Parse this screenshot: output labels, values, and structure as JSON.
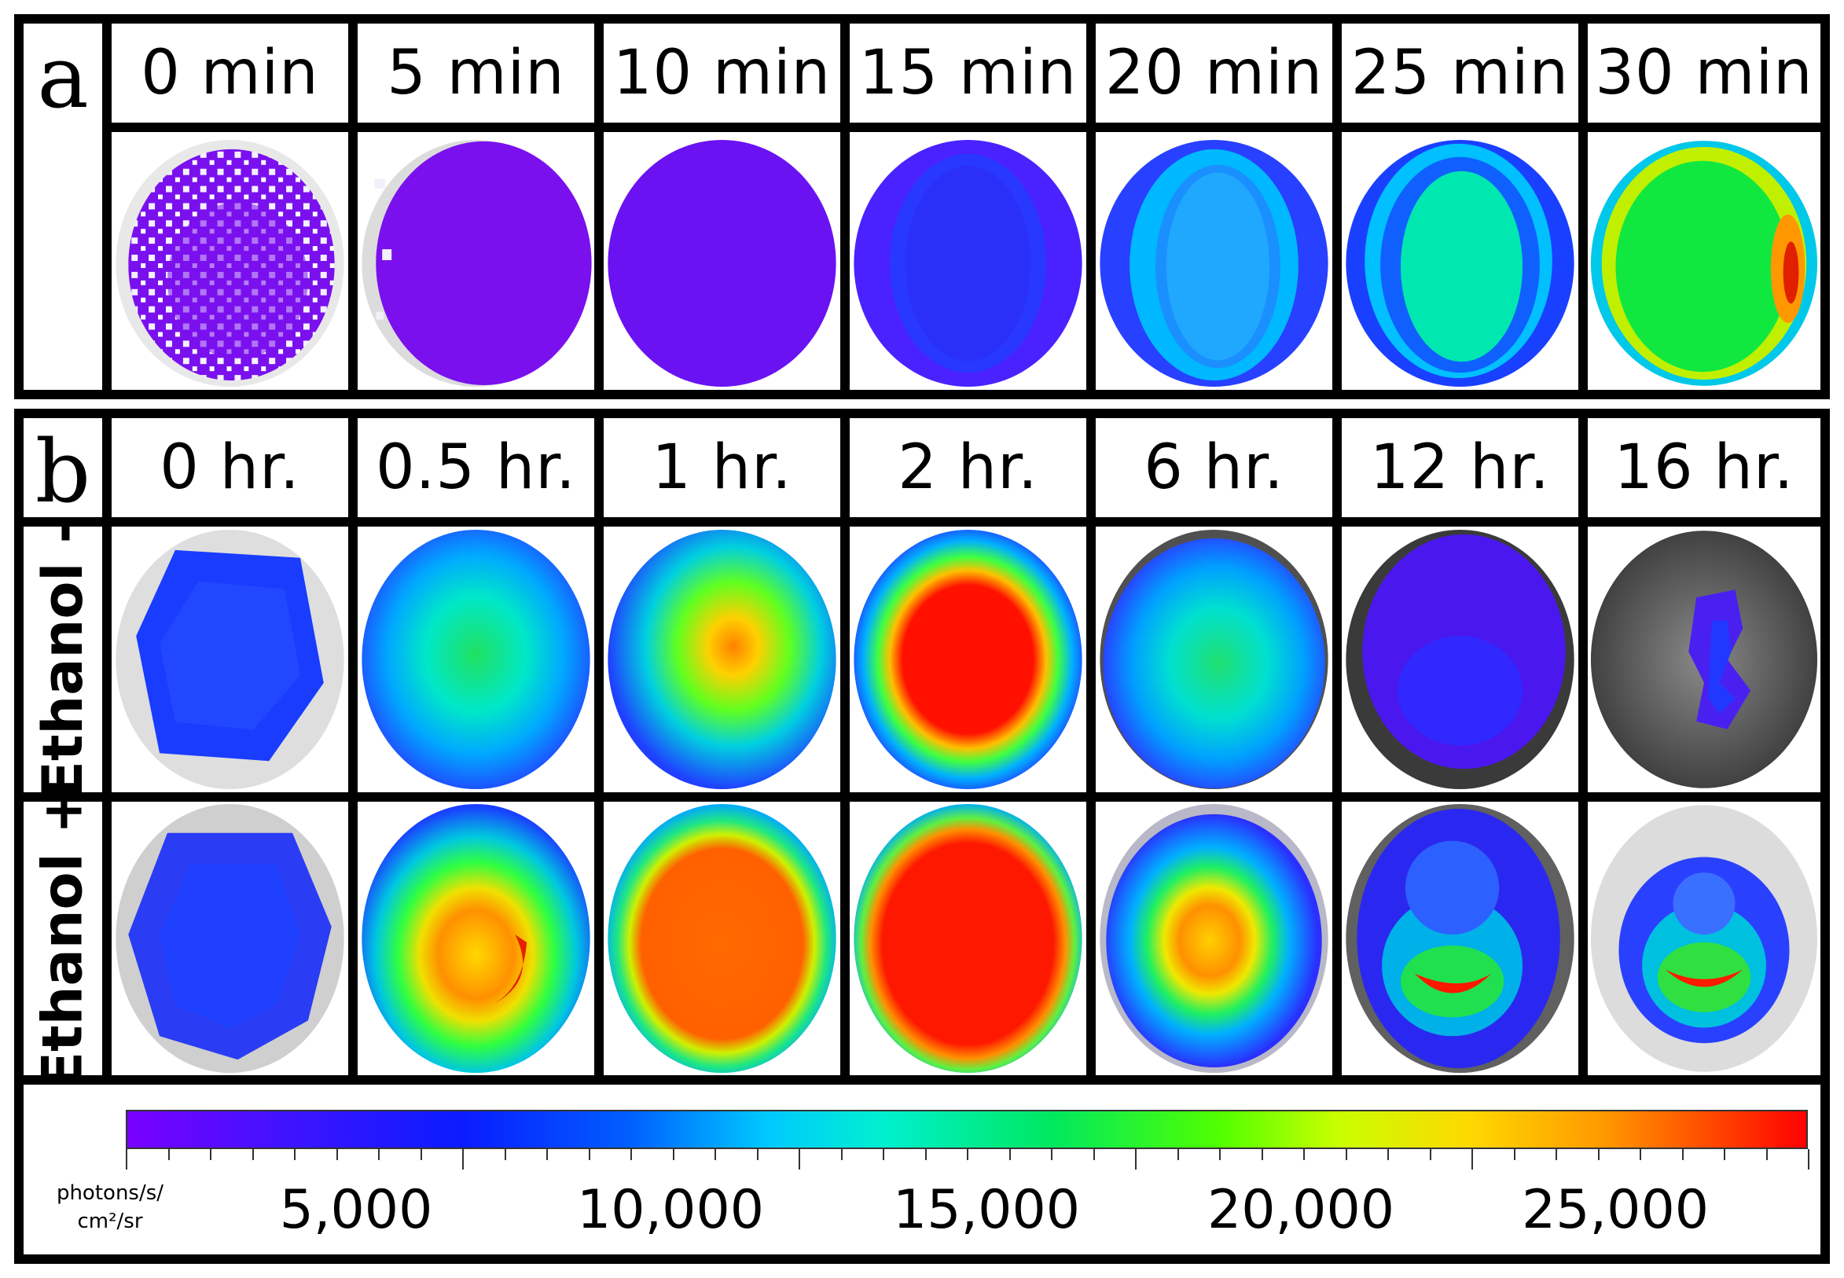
{
  "panel_a": {
    "letter": "a",
    "time_labels": [
      "0 min",
      "5 min",
      "10 min",
      "15 min",
      "20 min",
      "25 min",
      "30 min"
    ]
  },
  "panel_b": {
    "letter": "b",
    "time_labels": [
      "0 hr.",
      "0.5 hr.",
      "1 hr.",
      "2 hr.",
      "6 hr.",
      "12 hr.",
      "16 hr."
    ],
    "rows": [
      {
        "label": "Ethanol -"
      },
      {
        "label": "Ethanol +"
      }
    ]
  },
  "scale": {
    "unit_lines": [
      "photons/s/",
      "cm²/sr"
    ],
    "labels": [
      "5,000",
      "10,000",
      "15,000",
      "20,000",
      "25,000"
    ],
    "colors": {
      "low": "#7a00ff",
      "mid_low": "#0a1cff",
      "mid": "#00f0d0",
      "mid_high": "#50ff00",
      "high": "#ff0000"
    }
  }
}
